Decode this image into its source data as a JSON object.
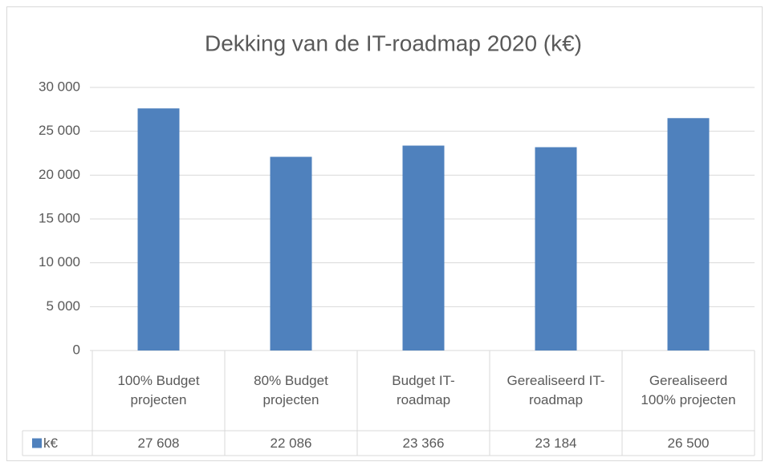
{
  "chart_data": {
    "type": "bar",
    "title": "Dekking van de IT-roadmap 2020 (k€)",
    "categories": [
      "100% Budget projecten",
      "80% Budget projecten",
      "Budget IT-roadmap",
      "Gerealiseerd IT-roadmap",
      "Gerealiseerd 100% projecten"
    ],
    "series": [
      {
        "name": "k€",
        "color": "#4f81bd",
        "values": [
          27608,
          22086,
          23366,
          23184,
          26500
        ],
        "value_labels": [
          "27 608",
          "22 086",
          "23 366",
          "23 184",
          "26 500"
        ]
      }
    ],
    "ylim": [
      0,
      30000
    ],
    "yticks": [
      0,
      {
        "value": 5000,
        "label": "5 000"
      },
      {
        "value": 10000,
        "label": "10 000"
      },
      {
        "value": 15000,
        "label": "15 000"
      },
      {
        "value": 20000,
        "label": "20 000"
      },
      {
        "value": 25000,
        "label": "25 000"
      },
      {
        "value": 30000,
        "label": "30 000"
      }
    ],
    "grid": true,
    "data_table": true
  }
}
